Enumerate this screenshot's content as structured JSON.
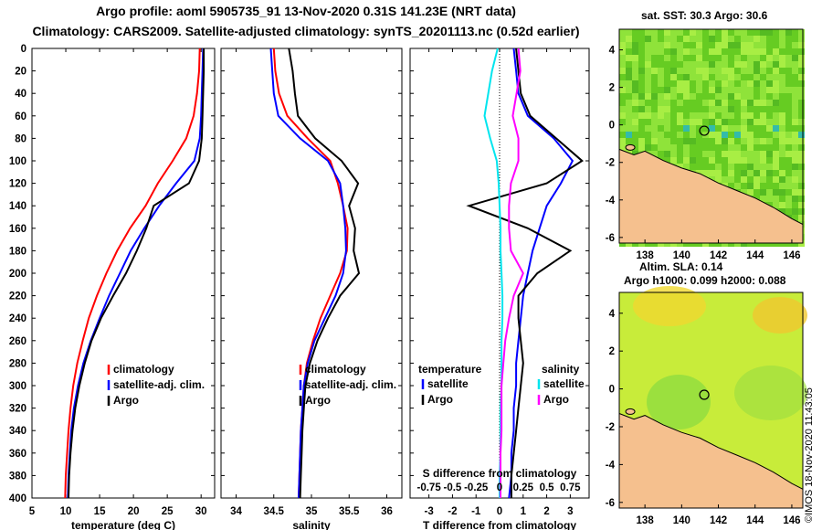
{
  "title_line1": "Argo profile: aoml 5905735_91 13-Nov-2020 0.31S 141.23E (NRT data)",
  "title_line2": "Climatology: CARS2009. Satellite-adjusted climatology: synTS_20201113.nc (0.52d earlier)",
  "watermark": "©IMOS 18-Nov-2020 11:43:05",
  "colors": {
    "climatology": "#ff0000",
    "satellite": "#0000ff",
    "argo": "#000000",
    "sat_salinity": "#00e5ee",
    "argo_salinity_diff": "#ff00ff",
    "land": "#f5c08e"
  },
  "chart_data": [
    {
      "type": "line",
      "name": "temperature-profile",
      "xlabel": "temperature (deg C)",
      "ylabel": "",
      "xlim": [
        5,
        32
      ],
      "ylim": [
        400,
        0
      ],
      "xticks": [
        "5",
        "10",
        "15",
        "20",
        "25",
        "30"
      ],
      "yticks": [
        "0",
        "20",
        "40",
        "60",
        "80",
        "100",
        "120",
        "140",
        "160",
        "180",
        "200",
        "220",
        "240",
        "260",
        "280",
        "300",
        "320",
        "340",
        "360",
        "380",
        "400"
      ],
      "legend": [
        "climatology",
        "satellite-adj. clim.",
        "Argo"
      ],
      "series": [
        {
          "name": "climatology",
          "color": "#ff0000",
          "x": [
            29.8,
            29.7,
            29.4,
            28.9,
            27.8,
            25.8,
            23.6,
            21.8,
            19.5,
            17.6,
            16.0,
            14.6,
            13.4,
            12.5,
            11.7,
            11.1,
            10.7,
            10.4,
            10.2,
            10.0,
            9.9
          ],
          "y": [
            0,
            20,
            40,
            60,
            80,
            100,
            120,
            140,
            160,
            180,
            200,
            220,
            240,
            260,
            280,
            300,
            320,
            340,
            360,
            380,
            400
          ]
        },
        {
          "name": "satellite-adj. clim.",
          "color": "#0000ff",
          "x": [
            30.3,
            30.2,
            30.1,
            30.0,
            29.8,
            29.0,
            26.3,
            23.8,
            21.6,
            19.6,
            18.0,
            16.4,
            15.0,
            13.7,
            12.6,
            11.8,
            11.2,
            10.8,
            10.6,
            10.4,
            10.3
          ],
          "y": [
            0,
            20,
            40,
            60,
            80,
            100,
            120,
            140,
            160,
            180,
            200,
            220,
            240,
            260,
            280,
            300,
            320,
            340,
            360,
            380,
            400
          ]
        },
        {
          "name": "Argo",
          "color": "#000000",
          "x": [
            30.4,
            30.4,
            30.3,
            30.2,
            30.1,
            29.7,
            28.2,
            23.0,
            21.9,
            20.5,
            18.9,
            17.0,
            15.2,
            13.8,
            12.8,
            12.0,
            11.4,
            11.0,
            10.7,
            10.5,
            10.4
          ],
          "y": [
            0,
            20,
            40,
            60,
            80,
            100,
            120,
            140,
            160,
            180,
            200,
            220,
            240,
            260,
            280,
            300,
            320,
            340,
            360,
            380,
            400
          ]
        }
      ]
    },
    {
      "type": "line",
      "name": "salinity-profile",
      "xlabel": "salinity",
      "xlim": [
        33.8,
        36.2
      ],
      "ylim": [
        400,
        0
      ],
      "xticks": [
        "34",
        "34.5",
        "35",
        "35.5",
        "36"
      ],
      "legend": [
        "climatology",
        "satellite-adj. clim.",
        "Argo"
      ],
      "series": [
        {
          "name": "climatology",
          "color": "#ff0000",
          "x": [
            34.5,
            34.52,
            34.57,
            34.68,
            34.95,
            35.25,
            35.35,
            35.42,
            35.48,
            35.47,
            35.38,
            35.25,
            35.12,
            35.02,
            34.94,
            34.9,
            34.88,
            34.86,
            34.85,
            34.84,
            34.83
          ],
          "y": [
            0,
            20,
            40,
            60,
            80,
            100,
            120,
            140,
            160,
            180,
            200,
            220,
            240,
            260,
            280,
            300,
            320,
            340,
            360,
            380,
            400
          ]
        },
        {
          "name": "satellite-adj. clim.",
          "color": "#0000ff",
          "x": [
            34.46,
            34.48,
            34.5,
            34.56,
            34.85,
            35.22,
            35.38,
            35.42,
            35.45,
            35.46,
            35.42,
            35.32,
            35.18,
            35.04,
            34.95,
            34.9,
            34.88,
            34.86,
            34.85,
            34.84,
            34.83
          ],
          "y": [
            0,
            20,
            40,
            60,
            80,
            100,
            120,
            140,
            160,
            180,
            200,
            220,
            240,
            260,
            280,
            300,
            320,
            340,
            360,
            380,
            400
          ]
        },
        {
          "name": "Argo",
          "color": "#000000",
          "x": [
            34.7,
            34.75,
            34.78,
            34.82,
            35.05,
            35.4,
            35.62,
            35.5,
            35.58,
            35.56,
            35.63,
            35.38,
            35.22,
            35.08,
            34.98,
            34.92,
            34.9,
            34.88,
            34.87,
            34.86,
            34.85
          ],
          "y": [
            0,
            20,
            40,
            60,
            80,
            100,
            120,
            140,
            160,
            180,
            200,
            220,
            240,
            260,
            280,
            300,
            320,
            340,
            360,
            380,
            400
          ]
        }
      ]
    },
    {
      "type": "line",
      "name": "difference-profile",
      "xlabel": "T difference from climatology",
      "xlabel_top": "S difference from climatology",
      "xlim": [
        -3.8,
        3.8
      ],
      "ylim": [
        400,
        0
      ],
      "xticks": [
        "-3",
        "-2",
        "-1",
        "0",
        "1",
        "2",
        "3"
      ],
      "xticks_s": [
        "-0.75",
        "-0.5",
        "-0.25",
        "0",
        "0.25",
        "0.5",
        "0.75"
      ],
      "legend_temperature_title": "temperature",
      "legend_salinity_title": "salinity",
      "legend": [
        "satellite",
        "Argo",
        "satellite",
        "Argo"
      ],
      "series": [
        {
          "name": "T satellite",
          "color": "#0000ff",
          "x": [
            0.6,
            0.7,
            0.8,
            1.2,
            2.3,
            3.1,
            2.6,
            2.0,
            1.7,
            1.4,
            1.2,
            1.0,
            0.9,
            0.8,
            0.7,
            0.7,
            0.6,
            0.6,
            0.5,
            0.5,
            0.4
          ],
          "y": [
            0,
            20,
            40,
            60,
            80,
            100,
            120,
            140,
            160,
            180,
            200,
            220,
            240,
            260,
            280,
            300,
            320,
            340,
            360,
            380,
            400
          ]
        },
        {
          "name": "T Argo",
          "color": "#000000",
          "x": [
            0.7,
            0.8,
            0.9,
            1.3,
            2.4,
            3.5,
            2.0,
            -1.3,
            1.2,
            3.0,
            1.6,
            0.8,
            0.8,
            0.9,
            1.0,
            0.9,
            0.8,
            0.7,
            0.6,
            0.5,
            0.5
          ],
          "y": [
            0,
            20,
            40,
            60,
            80,
            100,
            120,
            140,
            160,
            180,
            200,
            220,
            240,
            260,
            280,
            300,
            320,
            340,
            360,
            380,
            400
          ]
        },
        {
          "name": "S satellite",
          "color": "#00e5ee",
          "x": [
            -0.02,
            -0.08,
            -0.12,
            -0.16,
            -0.1,
            -0.03,
            -0.01,
            0.0,
            0.01,
            0.01,
            0.02,
            0.03,
            0.03,
            0.02,
            0.02,
            0.02,
            0.01,
            0.01,
            0.01,
            0.0,
            0.0
          ],
          "y": [
            0,
            20,
            40,
            60,
            80,
            100,
            120,
            140,
            160,
            180,
            200,
            220,
            240,
            260,
            280,
            300,
            320,
            340,
            360,
            380,
            400
          ]
        },
        {
          "name": "S Argo",
          "color": "#ff00ff",
          "x": [
            0.2,
            0.22,
            0.18,
            0.14,
            0.2,
            0.2,
            0.12,
            0.1,
            0.1,
            0.12,
            0.25,
            0.15,
            0.1,
            0.06,
            0.04,
            0.02,
            0.02,
            0.02,
            0.01,
            0.01,
            0.01
          ],
          "y": [
            0,
            20,
            40,
            60,
            80,
            100,
            120,
            140,
            160,
            180,
            200,
            220,
            240,
            260,
            280,
            300,
            320,
            340,
            360,
            380,
            400
          ]
        }
      ]
    }
  ],
  "maps": [
    {
      "title": "sat. SST: 30.3 Argo: 30.6",
      "xticks": [
        "138",
        "140",
        "142",
        "144",
        "146"
      ],
      "yticks": [
        "4",
        "2",
        "0",
        "-2",
        "-4",
        "-6"
      ]
    },
    {
      "title_line1": "Altim. SLA: 0.14",
      "title_line2": "Argo h1000: 0.099 h2000: 0.088",
      "xticks": [
        "138",
        "140",
        "142",
        "144",
        "146"
      ],
      "yticks": [
        "4",
        "2",
        "0",
        "-2",
        "-4",
        "-6"
      ]
    }
  ]
}
